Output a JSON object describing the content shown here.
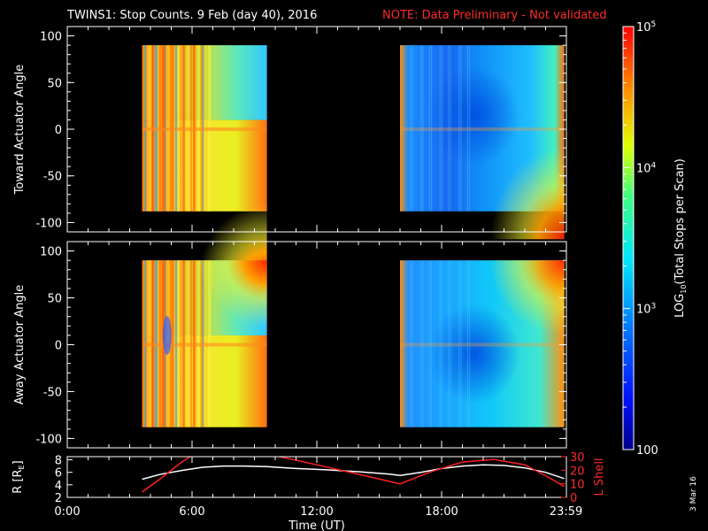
{
  "header": {
    "title": "TWINS1: Stop Counts.  9 Feb (day  40), 2016",
    "note": "NOTE: Data Preliminary - Not validated",
    "date_stamp": "3 Mar 16"
  },
  "colors": {
    "background": "#000000",
    "axes": "#ffffff",
    "note": "#ff2a2a",
    "l_shell_line": "#ff2020",
    "r_line": "#ffffff"
  },
  "chart_data": [
    {
      "type": "heatmap",
      "panel": "toward",
      "ylabel": "Toward Actuator Angle",
      "ylim": [
        -110,
        110
      ],
      "yticks": [
        100,
        50,
        0,
        -50,
        -100
      ],
      "xlim": [
        0,
        24
      ],
      "data_blocks": [
        {
          "x_range": [
            3.6,
            9.6
          ],
          "y_range": [
            -88,
            90
          ],
          "pattern": "hot"
        },
        {
          "x_range": [
            16.0,
            23.9
          ],
          "y_range": [
            -88,
            90
          ],
          "pattern": "cool"
        }
      ]
    },
    {
      "type": "heatmap",
      "panel": "away",
      "ylabel": "Away Actuator Angle",
      "ylim": [
        -110,
        110
      ],
      "yticks": [
        100,
        50,
        0,
        -50,
        -100
      ],
      "xlim": [
        0,
        24
      ],
      "data_blocks": [
        {
          "x_range": [
            3.6,
            9.6
          ],
          "y_range": [
            -88,
            90
          ],
          "pattern": "hot"
        },
        {
          "x_range": [
            16.0,
            23.9
          ],
          "y_range": [
            -88,
            90
          ],
          "pattern": "cool"
        }
      ]
    },
    {
      "type": "line",
      "panel": "orbit",
      "xlabel": "Time (UT)",
      "xlim": [
        0,
        24
      ],
      "xticks": [
        0,
        6,
        12,
        18,
        23.98
      ],
      "xtick_labels": [
        "0:00",
        "6:00",
        "12:00",
        "18:00",
        "23:59"
      ],
      "ylabel_left": "R [R",
      "ylabel_left_sub": "E",
      "ylabel_left_tail": "]",
      "ylim_left": [
        2,
        8.5
      ],
      "yticks_left": [
        8,
        6,
        4,
        2
      ],
      "ylabel_right": "L Shell",
      "ylim_right": [
        0,
        30
      ],
      "yticks_right": [
        30,
        20,
        10,
        0
      ],
      "series": [
        {
          "axis": "left",
          "color": "#ffffff",
          "x": [
            3.6,
            4.5,
            5.5,
            6.5,
            7.5,
            8.5,
            9.6,
            11,
            12.5,
            14,
            15.5,
            16.0,
            17,
            18,
            19,
            20,
            21,
            22,
            23,
            23.9
          ],
          "y": [
            4.9,
            5.7,
            6.3,
            6.8,
            7.0,
            7.0,
            6.9,
            6.6,
            6.4,
            6.1,
            5.7,
            5.5,
            6.0,
            6.6,
            7.0,
            7.2,
            7.1,
            6.7,
            6.0,
            5.0
          ]
        },
        {
          "axis": "right",
          "color": "#ff2020",
          "x": [
            3.6,
            4.5,
            5.5,
            5.9
          ],
          "y": [
            4,
            14,
            26,
            32
          ]
        },
        {
          "axis": "right",
          "color": "#ff2020",
          "x": [
            10.2,
            12,
            14,
            16.0,
            17.5,
            19,
            20.5,
            22,
            23,
            23.9
          ],
          "y": [
            32,
            24,
            17,
            10,
            19,
            26,
            28,
            24,
            16,
            8
          ]
        }
      ]
    }
  ],
  "colorbar": {
    "label_main": "LOG",
    "label_sub": "10",
    "label_tail": "(Total Stops per Scan)",
    "tick_labels": [
      {
        "base": "10",
        "exp": "5",
        "value": 100000
      },
      {
        "base": "10",
        "exp": "4",
        "value": 10000
      },
      {
        "base": "10",
        "exp": "3",
        "value": 1000
      },
      {
        "base": "100",
        "exp": "",
        "value": 100
      }
    ]
  }
}
